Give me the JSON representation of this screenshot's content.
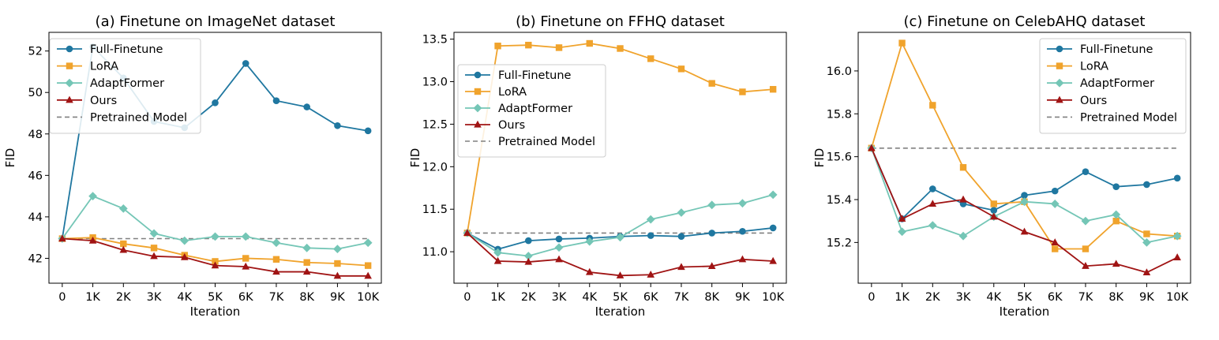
{
  "colors": {
    "Full-Finetune": "#1f77a0",
    "LoRA": "#f0a32c",
    "AdaptFormer": "#74c6b6",
    "Ours": "#a01414",
    "Pretrained Model": "#808080"
  },
  "chart_data": [
    {
      "type": "line",
      "title": "(a) Finetune on ImageNet dataset",
      "xlabel": "Iteration",
      "ylabel": "FID",
      "categories": [
        "0",
        "1K",
        "2K",
        "3K",
        "4K",
        "5K",
        "6K",
        "7K",
        "8K",
        "9K",
        "10K"
      ],
      "ylim": [
        40.8,
        52.9
      ],
      "yticks": [
        42,
        44,
        46,
        48,
        50,
        52
      ],
      "legend_position": "top-left",
      "series": [
        {
          "name": "Full-Finetune",
          "marker": "circle",
          "values": [
            42.95,
            52.2,
            50.7,
            48.6,
            48.3,
            49.5,
            51.4,
            49.6,
            49.3,
            48.4,
            48.15
          ]
        },
        {
          "name": "LoRA",
          "marker": "square",
          "values": [
            42.95,
            43.0,
            42.7,
            42.5,
            42.15,
            41.85,
            42.0,
            41.95,
            41.8,
            41.75,
            41.65
          ]
        },
        {
          "name": "AdaptFormer",
          "marker": "diamond",
          "values": [
            42.95,
            45.0,
            44.4,
            43.2,
            42.85,
            43.05,
            43.05,
            42.75,
            42.5,
            42.45,
            42.75
          ]
        },
        {
          "name": "Ours",
          "marker": "triangle",
          "values": [
            42.95,
            42.85,
            42.4,
            42.1,
            42.05,
            41.65,
            41.6,
            41.35,
            41.35,
            41.15,
            41.15
          ]
        },
        {
          "name": "Pretrained Model",
          "marker": "none",
          "dashed": true,
          "values": [
            42.95,
            42.95,
            42.95,
            42.95,
            42.95,
            42.95,
            42.95,
            42.95,
            42.95,
            42.95,
            42.95
          ]
        }
      ]
    },
    {
      "type": "line",
      "title": "(b) Finetune on FFHQ dataset",
      "xlabel": "Iteration",
      "ylabel": "FID",
      "categories": [
        "0",
        "1K",
        "2K",
        "3K",
        "4K",
        "5K",
        "6K",
        "7K",
        "8K",
        "9K",
        "10K"
      ],
      "ylim": [
        10.63,
        13.58
      ],
      "yticks": [
        11.0,
        11.5,
        12.0,
        12.5,
        13.0,
        13.5
      ],
      "ytick_labels": [
        "11.0",
        "11.5",
        "12.0",
        "12.5",
        "13.0",
        "13.5"
      ],
      "legend_position": "upper-left",
      "series": [
        {
          "name": "Full-Finetune",
          "marker": "circle",
          "values": [
            11.22,
            11.03,
            11.13,
            11.15,
            11.16,
            11.18,
            11.19,
            11.18,
            11.22,
            11.24,
            11.28
          ]
        },
        {
          "name": "LoRA",
          "marker": "square",
          "values": [
            11.22,
            13.42,
            13.43,
            13.4,
            13.45,
            13.39,
            13.27,
            13.15,
            12.98,
            12.88,
            12.91
          ]
        },
        {
          "name": "AdaptFormer",
          "marker": "diamond",
          "values": [
            11.22,
            10.99,
            10.95,
            11.05,
            11.12,
            11.17,
            11.38,
            11.46,
            11.55,
            11.57,
            11.67
          ]
        },
        {
          "name": "Ours",
          "marker": "triangle",
          "values": [
            11.22,
            10.89,
            10.88,
            10.91,
            10.76,
            10.72,
            10.73,
            10.82,
            10.83,
            10.91,
            10.89
          ]
        },
        {
          "name": "Pretrained Model",
          "marker": "none",
          "dashed": true,
          "values": [
            11.22,
            11.22,
            11.22,
            11.22,
            11.22,
            11.22,
            11.22,
            11.22,
            11.22,
            11.22,
            11.22
          ]
        }
      ]
    },
    {
      "type": "line",
      "title": "(c) Finetune on CelebAHQ dataset",
      "xlabel": "Iteration",
      "ylabel": "FID",
      "categories": [
        "0",
        "1K",
        "2K",
        "3K",
        "4K",
        "5K",
        "6K",
        "7K",
        "8K",
        "9K",
        "10K"
      ],
      "ylim": [
        15.01,
        16.18
      ],
      "yticks": [
        15.2,
        15.4,
        15.6,
        15.8,
        16.0
      ],
      "ytick_labels": [
        "15.2",
        "15.4",
        "15.6",
        "15.8",
        "16.0"
      ],
      "legend_position": "top-right",
      "series": [
        {
          "name": "Full-Finetune",
          "marker": "circle",
          "values": [
            15.64,
            15.31,
            15.45,
            15.38,
            15.35,
            15.42,
            15.44,
            15.53,
            15.46,
            15.47,
            15.5
          ]
        },
        {
          "name": "LoRA",
          "marker": "square",
          "values": [
            15.64,
            16.13,
            15.84,
            15.55,
            15.38,
            15.39,
            15.17,
            15.17,
            15.3,
            15.24,
            15.23
          ]
        },
        {
          "name": "AdaptFormer",
          "marker": "diamond",
          "values": [
            15.64,
            15.25,
            15.28,
            15.23,
            15.32,
            15.39,
            15.38,
            15.3,
            15.33,
            15.2,
            15.23
          ]
        },
        {
          "name": "Ours",
          "marker": "triangle",
          "values": [
            15.64,
            15.31,
            15.38,
            15.4,
            15.32,
            15.25,
            15.2,
            15.09,
            15.1,
            15.06,
            15.13
          ]
        },
        {
          "name": "Pretrained Model",
          "marker": "none",
          "dashed": true,
          "values": [
            15.64,
            15.64,
            15.64,
            15.64,
            15.64,
            15.64,
            15.64,
            15.64,
            15.64,
            15.64,
            15.64
          ]
        }
      ]
    }
  ]
}
